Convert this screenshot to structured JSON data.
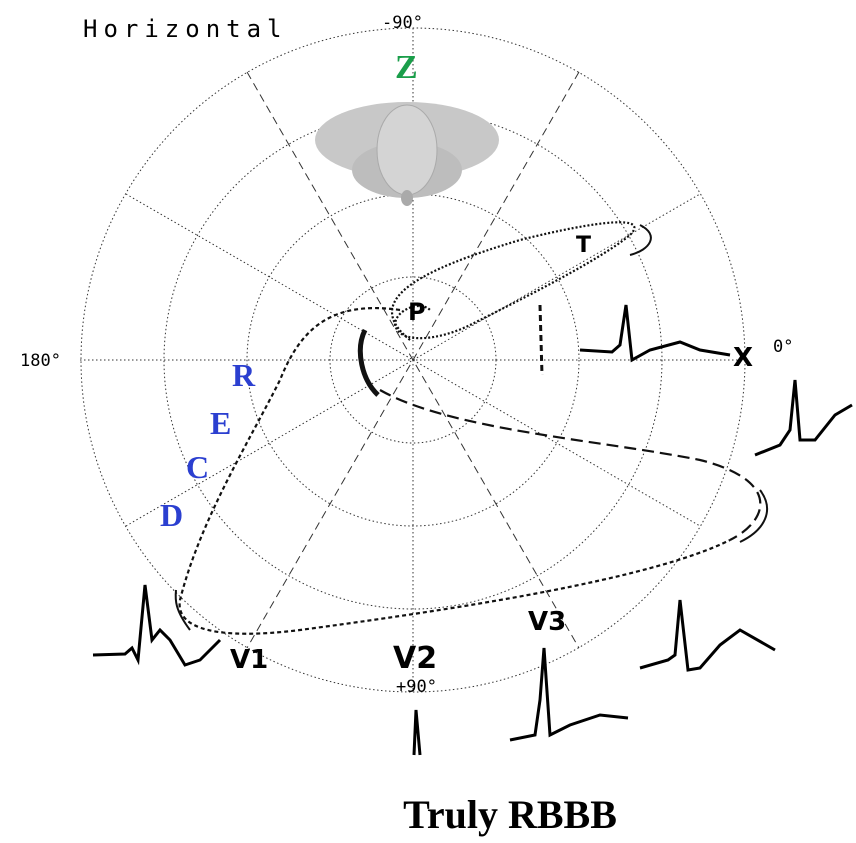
{
  "header": {
    "title": "Horizontal"
  },
  "axes": {
    "top": "-90°",
    "left": "180°",
    "right": "0°",
    "bottom": "+90°"
  },
  "axis_names": {
    "x": "X",
    "z": "Z"
  },
  "waves": {
    "p": "P",
    "t": "T"
  },
  "leads": [
    "V1",
    "V2",
    "V3"
  ],
  "loop_label": [
    "R",
    "E",
    "C",
    "D"
  ],
  "caption": "Truly RBBB"
}
